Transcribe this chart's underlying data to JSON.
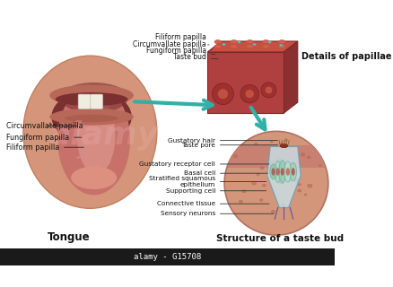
{
  "background_color": "#ffffff",
  "title_tongue": "Tongue",
  "title_papillae": "Details of papillae",
  "title_taste_bud": "Structure of a taste bud",
  "watermark": "alamy",
  "watermark_color": "#e8b0b0",
  "bottom_bar_color": "#1a1a1a",
  "bottom_text": "alamy - G15708",
  "bottom_text_color": "#ffffff",
  "tongue_labels": [
    "Circumvallate papilla",
    "Fungiform papilla",
    "Filiform papilla"
  ],
  "papillae_labels": [
    "Filiform papilla",
    "Circumvallate papilla",
    "Fungiform papilla",
    "Taste bud"
  ],
  "taste_bud_labels": [
    "Taste pore",
    "Gustatory hair",
    "Gustatory receptor cell",
    "Basal cell",
    "Stratified squamous\nepithelium",
    "Supporting cell",
    "Connective tissue",
    "Sensory neurons"
  ],
  "tongue_color": "#c8706a",
  "tongue_tip_color": "#dd9080",
  "tongue_highlight": "#e8b0a0",
  "mouth_dark": "#7a3030",
  "face_color": "#d4957a",
  "face_edge": "#c08060",
  "papilla_front": "#b04040",
  "papilla_top": "#c85040",
  "papilla_right": "#8b3030",
  "papilla_surface_bump": "#d06050",
  "taste_bud_circle_bg": "#d4967a",
  "taste_bud_skin": "#c88070",
  "taste_bud_pore": "#8b3020",
  "taste_bud_flask_fill": "#c8e8f0",
  "taste_bud_flask_edge": "#60a0b8",
  "taste_bud_cell": "#a0d8b0",
  "taste_bud_cell_inner": "#c04040",
  "taste_bud_circle_dot": "#c07060",
  "arrow_color": "#30b0a8",
  "label_line_color": "#333333",
  "teeth_color": "#f0ede0",
  "lip_outer": "#b86858",
  "lip_dark": "#9a5040",
  "label_fontsize": 5.8,
  "label_color": "#111111"
}
